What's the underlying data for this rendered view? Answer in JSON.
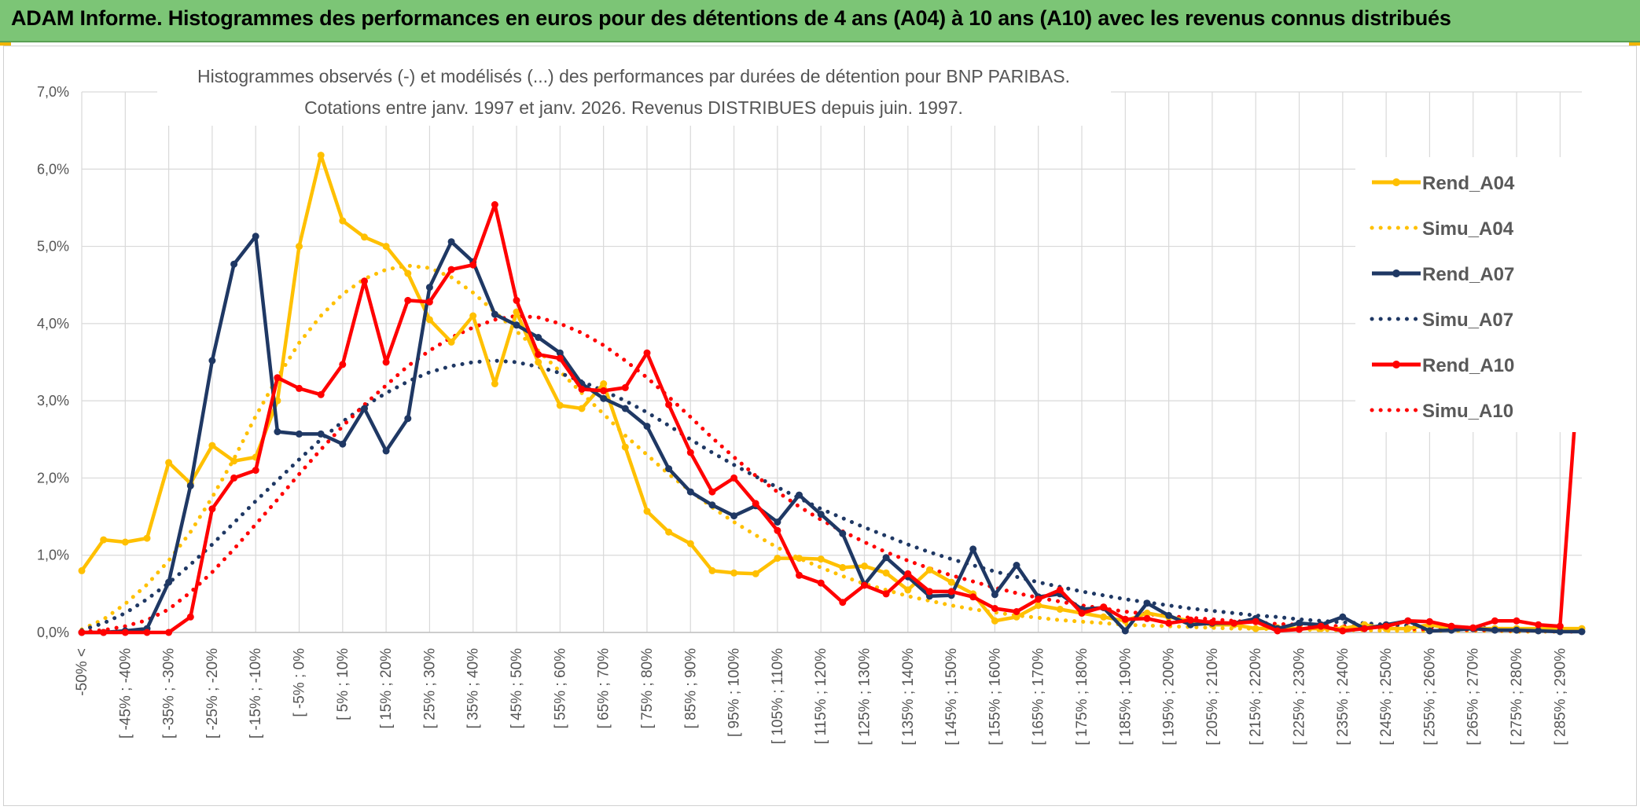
{
  "header": {
    "title": "ADAM Informe. Histogrammes des performances en euros pour des détentions de 4 ans (A04) à 10 ans (A10) avec les revenus connus distribués"
  },
  "colors": {
    "banner": "#7cc576",
    "A04": "#ffc000",
    "A07": "#1f3864",
    "A10": "#ff0000"
  },
  "chart_data": {
    "type": "line",
    "title": [
      "Histogrammes observés (-) et modélisés (...) des performances par durées de détention pour BNP PARIBAS.",
      "Cotations entre janv. 1997 et janv. 2026. Revenus DISTRIBUES depuis juin. 1997."
    ],
    "xlabel": "",
    "ylabel": "",
    "ylim": [
      0,
      7
    ],
    "y_unit": "%",
    "yticks": [
      "0,0%",
      "1,0%",
      "2,0%",
      "3,0%",
      "4,0%",
      "5,0%",
      "6,0%",
      "7,0%"
    ],
    "grid": true,
    "legend_position": "right",
    "x_tick_labels": [
      "-50% <",
      "[ -45% ; -40%",
      "[ -35% ; -30%",
      "[ -25% ; -20%",
      "[ -15% ; -10%",
      "[ -5% ; 0%",
      "[ 5% ; 10%",
      "[ 15% ; 20%",
      "[ 25% ; 30%",
      "[ 35% ; 40%",
      "[ 45% ; 50%",
      "[ 55% ; 60%",
      "[ 65% ; 70%",
      "[ 75% ; 80%",
      "[ 85% ; 90%",
      "[ 95% ; 100%",
      "[ 105% ; 110%",
      "[ 115% ; 120%",
      "[ 125% ; 130%",
      "[ 135% ; 140%",
      "[ 145% ; 150%",
      "[ 155% ; 160%",
      "[ 165% ; 170%",
      "[ 175% ; 180%",
      "[ 185% ; 190%",
      "[ 195% ; 200%",
      "[ 205% ; 210%",
      "[ 215% ; 220%",
      "[ 225% ; 230%",
      "[ 235% ; 240%",
      "[ 245% ; 250%",
      "[ 255% ; 260%",
      "[ 265% ; 270%",
      "[ 275% ; 280%",
      "[ 285% ; 290%"
    ],
    "x_points": 70,
    "series": [
      {
        "name": "Rend_A04",
        "style": "solid",
        "color": "#ffc000",
        "values": [
          0.8,
          1.2,
          1.17,
          1.22,
          2.2,
          1.93,
          2.42,
          2.22,
          2.27,
          3.0,
          5.0,
          6.18,
          5.33,
          5.12,
          5.0,
          4.65,
          4.05,
          3.76,
          4.1,
          3.22,
          4.15,
          3.5,
          2.94,
          2.9,
          3.22,
          2.4,
          1.57,
          1.3,
          1.15,
          0.8,
          0.77,
          0.76,
          0.96,
          0.96,
          0.95,
          0.84,
          0.86,
          0.77,
          0.55,
          0.81,
          0.65,
          0.5,
          0.15,
          0.2,
          0.35,
          0.3,
          0.25,
          0.2,
          0.15,
          0.25,
          0.2,
          0.15,
          0.1,
          0.1,
          0.05,
          0.06,
          0.05,
          0.05,
          0.05,
          0.1,
          0.05,
          0.05,
          0.1,
          0.05,
          0.05,
          0.05,
          0.05,
          0.05,
          0.05,
          0.05
        ]
      },
      {
        "name": "Simu_A04",
        "style": "dotted",
        "color": "#ffc000",
        "values": [
          0.04,
          0.17,
          0.37,
          0.62,
          0.93,
          1.3,
          1.75,
          2.25,
          2.8,
          3.3,
          3.75,
          4.1,
          4.38,
          4.58,
          4.7,
          4.75,
          4.72,
          4.6,
          4.4,
          4.15,
          3.9,
          3.65,
          3.38,
          3.1,
          2.83,
          2.55,
          2.3,
          2.05,
          1.83,
          1.62,
          1.43,
          1.26,
          1.1,
          0.96,
          0.84,
          0.73,
          0.63,
          0.55,
          0.47,
          0.41,
          0.35,
          0.3,
          0.26,
          0.22,
          0.19,
          0.16,
          0.14,
          0.12,
          0.1,
          0.09,
          0.08,
          0.07,
          0.06,
          0.05,
          0.05,
          0.04,
          0.04,
          0.03,
          0.03,
          0.03,
          0.02,
          0.02,
          0.02,
          0.02,
          0.02,
          0.02,
          0.01,
          0.01,
          0.01,
          0.01
        ]
      },
      {
        "name": "Rend_A07",
        "style": "solid",
        "color": "#1f3864",
        "values": [
          0.0,
          0.0,
          0.02,
          0.05,
          0.65,
          1.9,
          3.52,
          4.77,
          5.13,
          2.6,
          2.57,
          2.57,
          2.44,
          2.9,
          2.35,
          2.77,
          4.47,
          5.06,
          4.8,
          4.12,
          3.98,
          3.82,
          3.62,
          3.22,
          3.03,
          2.9,
          2.67,
          2.12,
          1.82,
          1.65,
          1.51,
          1.64,
          1.43,
          1.78,
          1.53,
          1.28,
          0.62,
          0.97,
          0.72,
          0.47,
          0.48,
          1.08,
          0.49,
          0.87,
          0.46,
          0.5,
          0.3,
          0.32,
          0.02,
          0.38,
          0.22,
          0.1,
          0.12,
          0.12,
          0.18,
          0.05,
          0.12,
          0.1,
          0.2,
          0.05,
          0.1,
          0.15,
          0.02,
          0.03,
          0.05,
          0.03,
          0.03,
          0.02,
          0.01,
          0.01
        ]
      },
      {
        "name": "Simu_A07",
        "style": "dotted",
        "color": "#1f3864",
        "values": [
          0.03,
          0.12,
          0.25,
          0.43,
          0.64,
          0.88,
          1.14,
          1.42,
          1.7,
          1.97,
          2.24,
          2.5,
          2.73,
          2.93,
          3.1,
          3.25,
          3.37,
          3.45,
          3.5,
          3.52,
          3.5,
          3.44,
          3.36,
          3.25,
          3.13,
          3.0,
          2.85,
          2.68,
          2.5,
          2.33,
          2.17,
          2.02,
          1.88,
          1.74,
          1.6,
          1.48,
          1.36,
          1.25,
          1.14,
          1.04,
          0.95,
          0.87,
          0.79,
          0.72,
          0.65,
          0.59,
          0.53,
          0.48,
          0.43,
          0.39,
          0.35,
          0.31,
          0.28,
          0.25,
          0.22,
          0.2,
          0.17,
          0.15,
          0.13,
          0.12,
          0.1,
          0.09,
          0.08,
          0.07,
          0.06,
          0.05,
          0.04,
          0.03,
          0.02,
          0.01
        ]
      },
      {
        "name": "Rend_A10",
        "style": "solid",
        "color": "#ff0000",
        "values": [
          0.0,
          0.0,
          0.0,
          0.0,
          0.0,
          0.2,
          1.6,
          2.0,
          2.1,
          3.3,
          3.16,
          3.08,
          3.47,
          4.55,
          3.5,
          4.3,
          4.28,
          4.7,
          4.76,
          5.54,
          4.3,
          3.6,
          3.55,
          3.15,
          3.13,
          3.17,
          3.62,
          2.95,
          2.33,
          1.82,
          2.0,
          1.67,
          1.32,
          0.74,
          0.64,
          0.39,
          0.61,
          0.5,
          0.76,
          0.53,
          0.53,
          0.46,
          0.31,
          0.27,
          0.43,
          0.55,
          0.25,
          0.33,
          0.17,
          0.18,
          0.12,
          0.16,
          0.13,
          0.12,
          0.14,
          0.02,
          0.04,
          0.08,
          0.02,
          0.05,
          0.08,
          0.15,
          0.14,
          0.08,
          0.06,
          0.15,
          0.15,
          0.1,
          0.08,
          3.98
        ]
      },
      {
        "name": "Simu_A10",
        "style": "dotted",
        "color": "#ff0000",
        "values": [
          0.01,
          0.03,
          0.08,
          0.16,
          0.3,
          0.52,
          0.78,
          1.08,
          1.4,
          1.72,
          2.05,
          2.37,
          2.67,
          2.95,
          3.2,
          3.45,
          3.65,
          3.82,
          3.95,
          4.05,
          4.1,
          4.08,
          4.0,
          3.88,
          3.72,
          3.52,
          3.3,
          3.05,
          2.79,
          2.52,
          2.27,
          2.03,
          1.82,
          1.63,
          1.46,
          1.31,
          1.17,
          1.04,
          0.93,
          0.83,
          0.74,
          0.66,
          0.58,
          0.51,
          0.45,
          0.4,
          0.35,
          0.31,
          0.27,
          0.24,
          0.21,
          0.19,
          0.17,
          0.15,
          0.13,
          0.11,
          0.1,
          0.09,
          0.08,
          0.07,
          0.06,
          0.05,
          0.04,
          0.04,
          0.03,
          0.03,
          0.02,
          0.02,
          0.01,
          0.01
        ]
      }
    ]
  }
}
